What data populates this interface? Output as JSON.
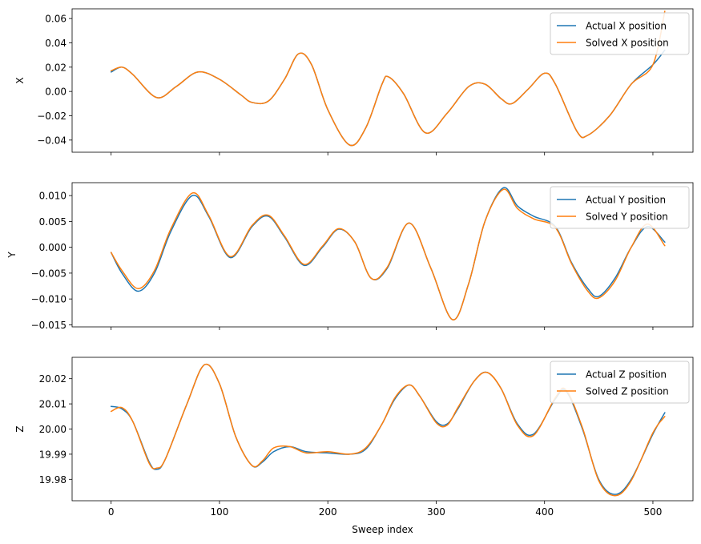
{
  "colors": {
    "actual": "#1f77b4",
    "solved": "#ff7f0e",
    "axis": "#000000",
    "legend_border": "#cccccc"
  },
  "chart_data": [
    {
      "type": "line",
      "xlabel": "",
      "ylabel": "X",
      "xlim": [
        -36,
        537
      ],
      "ylim": [
        -0.05,
        0.068
      ],
      "yticks": [
        -0.04,
        -0.02,
        0.0,
        0.02,
        0.04,
        0.06
      ],
      "ytick_labels": [
        "−0.04",
        "−0.02",
        "0.00",
        "0.02",
        "0.04",
        "0.06"
      ],
      "xticks": [
        0,
        100,
        200,
        300,
        400,
        500
      ],
      "xtick_labels": [],
      "grid": false,
      "legend_position": "top-right",
      "series": [
        {
          "name": "Actual X position",
          "color": "#1f77b4",
          "x": [
            0,
            10,
            20,
            42,
            60,
            80,
            100,
            120,
            130,
            145,
            160,
            173,
            185,
            200,
            220,
            235,
            250,
            256,
            270,
            290,
            310,
            330,
            345,
            360,
            370,
            385,
            400,
            410,
            430,
            440,
            460,
            480,
            500,
            511
          ],
          "y": [
            0.016,
            0.02,
            0.014,
            -0.005,
            0.004,
            0.016,
            0.01,
            -0.003,
            -0.009,
            -0.008,
            0.01,
            0.031,
            0.022,
            -0.015,
            -0.044,
            -0.03,
            0.006,
            0.012,
            -0.002,
            -0.034,
            -0.018,
            0.004,
            0.006,
            -0.006,
            -0.01,
            0.002,
            0.015,
            0.006,
            -0.033,
            -0.036,
            -0.02,
            0.006,
            0.022,
            0.034
          ]
        },
        {
          "name": "Solved X position",
          "color": "#ff7f0e",
          "x": [
            0,
            10,
            20,
            42,
            60,
            80,
            100,
            120,
            130,
            145,
            160,
            173,
            185,
            200,
            220,
            235,
            250,
            256,
            270,
            290,
            310,
            330,
            345,
            360,
            370,
            385,
            400,
            410,
            430,
            440,
            460,
            480,
            500,
            511
          ],
          "y": [
            0.017,
            0.02,
            0.014,
            -0.005,
            0.004,
            0.016,
            0.01,
            -0.003,
            -0.009,
            -0.008,
            0.01,
            0.031,
            0.022,
            -0.015,
            -0.044,
            -0.03,
            0.006,
            0.012,
            -0.002,
            -0.034,
            -0.018,
            0.004,
            0.006,
            -0.006,
            -0.01,
            0.002,
            0.015,
            0.006,
            -0.033,
            -0.036,
            -0.02,
            0.006,
            0.022,
            0.066
          ]
        }
      ]
    },
    {
      "type": "line",
      "xlabel": "",
      "ylabel": "Y",
      "xlim": [
        -36,
        537
      ],
      "ylim": [
        -0.0154,
        0.0125
      ],
      "yticks": [
        -0.015,
        -0.01,
        -0.005,
        0.0,
        0.005,
        0.01
      ],
      "ytick_labels": [
        "−0.015",
        "−0.010",
        "−0.005",
        "0.000",
        "0.005",
        "0.010"
      ],
      "xticks": [
        0,
        100,
        200,
        300,
        400,
        500
      ],
      "xtick_labels": [],
      "grid": false,
      "legend_position": "top-right",
      "series": [
        {
          "name": "Actual Y position",
          "color": "#1f77b4",
          "x": [
            0,
            10,
            25,
            40,
            55,
            75,
            90,
            110,
            130,
            145,
            160,
            178,
            195,
            210,
            225,
            240,
            255,
            275,
            295,
            315,
            330,
            345,
            362,
            375,
            390,
            410,
            425,
            440,
            450,
            465,
            480,
            495,
            511
          ],
          "y": [
            -0.001,
            -0.005,
            -0.0085,
            -0.005,
            0.003,
            0.01,
            0.006,
            -0.002,
            0.004,
            0.006,
            0.002,
            -0.0035,
            0.0,
            0.0035,
            0.001,
            -0.006,
            -0.004,
            0.0047,
            -0.004,
            -0.014,
            -0.007,
            0.005,
            0.0115,
            0.008,
            0.006,
            0.004,
            -0.003,
            -0.008,
            -0.0095,
            -0.006,
            0.0,
            0.004,
            0.001
          ]
        },
        {
          "name": "Solved Y position",
          "color": "#ff7f0e",
          "x": [
            0,
            10,
            25,
            40,
            55,
            75,
            90,
            110,
            130,
            145,
            160,
            178,
            195,
            210,
            225,
            240,
            255,
            275,
            295,
            315,
            330,
            345,
            362,
            375,
            390,
            410,
            425,
            440,
            450,
            465,
            480,
            495,
            511
          ],
          "y": [
            -0.001,
            -0.0045,
            -0.008,
            -0.0045,
            0.0035,
            0.0105,
            0.0062,
            -0.0018,
            0.0042,
            0.0062,
            0.0022,
            -0.0033,
            0.0002,
            0.0036,
            0.001,
            -0.006,
            -0.0038,
            0.0047,
            -0.004,
            -0.014,
            -0.007,
            0.005,
            0.0112,
            0.0075,
            0.0055,
            0.0038,
            -0.0032,
            -0.0085,
            -0.0098,
            -0.0065,
            0.0,
            0.0045,
            0.0003
          ]
        }
      ]
    },
    {
      "type": "line",
      "xlabel": "Sweep index",
      "ylabel": "Z",
      "xlim": [
        -36,
        537
      ],
      "ylim": [
        19.9715,
        20.0285
      ],
      "yticks": [
        19.98,
        19.99,
        20.0,
        20.01,
        20.02
      ],
      "ytick_labels": [
        "19.98",
        "19.99",
        "20.00",
        "20.01",
        "20.02"
      ],
      "xticks": [
        0,
        100,
        200,
        300,
        400,
        500
      ],
      "xtick_labels": [
        "0",
        "100",
        "200",
        "300",
        "400",
        "500"
      ],
      "grid": false,
      "legend_position": "top-right",
      "series": [
        {
          "name": "Actual Z position",
          "color": "#1f77b4",
          "x": [
            0,
            10,
            20,
            35,
            42,
            50,
            70,
            86,
            100,
            115,
            130,
            140,
            150,
            165,
            180,
            200,
            220,
            235,
            250,
            262,
            275,
            285,
            300,
            310,
            320,
            335,
            347,
            360,
            375,
            390,
            410,
            420,
            435,
            450,
            465,
            480,
            500,
            511
          ],
          "y": [
            20.009,
            20.008,
            20.003,
            19.987,
            19.984,
            19.988,
            20.01,
            20.0255,
            20.018,
            19.997,
            19.9855,
            19.987,
            19.991,
            19.993,
            19.991,
            19.9905,
            19.99,
            19.992,
            20.002,
            20.012,
            20.0175,
            20.013,
            20.003,
            20.002,
            20.008,
            20.019,
            20.0225,
            20.016,
            20.002,
            19.998,
            20.012,
            20.015,
            20.0,
            19.98,
            19.974,
            19.98,
            19.998,
            20.0065
          ]
        },
        {
          "name": "Solved Z position",
          "color": "#ff7f0e",
          "x": [
            0,
            10,
            20,
            35,
            42,
            50,
            70,
            86,
            100,
            115,
            130,
            140,
            150,
            165,
            180,
            200,
            220,
            235,
            250,
            262,
            275,
            285,
            300,
            310,
            320,
            335,
            347,
            360,
            375,
            390,
            410,
            420,
            435,
            450,
            465,
            480,
            500,
            511
          ],
          "y": [
            20.007,
            20.0085,
            20.003,
            19.9865,
            19.9845,
            19.988,
            20.01,
            20.0255,
            20.018,
            19.997,
            19.9855,
            19.9875,
            19.9925,
            19.993,
            19.9905,
            19.991,
            19.99,
            19.9925,
            20.002,
            20.0125,
            20.0175,
            20.013,
            20.0025,
            20.0015,
            20.0085,
            20.019,
            20.0225,
            20.016,
            20.0015,
            19.9975,
            20.0125,
            20.0155,
            20.0005,
            19.9795,
            19.9735,
            19.9795,
            19.9985,
            20.005
          ]
        }
      ]
    }
  ]
}
